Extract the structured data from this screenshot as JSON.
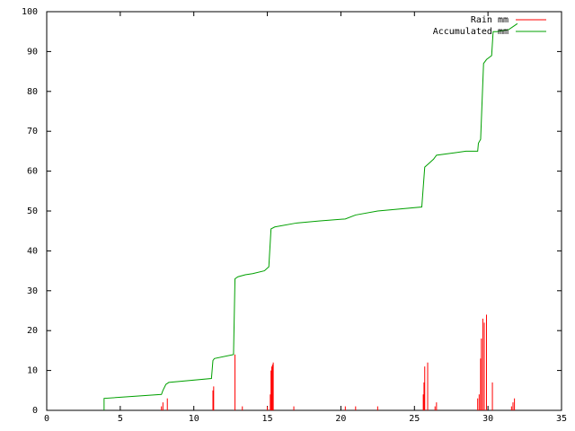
{
  "chart_data": {
    "type": "line",
    "xlim": [
      0,
      35
    ],
    "ylim": [
      0,
      100
    ],
    "x_ticks": [
      0,
      5,
      10,
      15,
      20,
      25,
      30,
      35
    ],
    "y_ticks": [
      0,
      10,
      20,
      30,
      40,
      50,
      60,
      70,
      80,
      90,
      100
    ],
    "grid": false,
    "legend_position": "top-right",
    "series": [
      {
        "name": "Rain mm",
        "color": "#ff0000",
        "style": "impulses",
        "points": [
          [
            7.8,
            1
          ],
          [
            7.9,
            2
          ],
          [
            8.2,
            3
          ],
          [
            11.3,
            5
          ],
          [
            11.35,
            6
          ],
          [
            12.8,
            14
          ],
          [
            13.3,
            1
          ],
          [
            15.0,
            1
          ],
          [
            15.2,
            4
          ],
          [
            15.25,
            10
          ],
          [
            15.3,
            11
          ],
          [
            15.35,
            11.5
          ],
          [
            15.4,
            12
          ],
          [
            16.8,
            1
          ],
          [
            20.3,
            1
          ],
          [
            21.0,
            1
          ],
          [
            22.5,
            1
          ],
          [
            25.6,
            4
          ],
          [
            25.65,
            7
          ],
          [
            25.7,
            11
          ],
          [
            25.9,
            12
          ],
          [
            26.4,
            1
          ],
          [
            26.5,
            2
          ],
          [
            29.3,
            3
          ],
          [
            29.4,
            4
          ],
          [
            29.5,
            13
          ],
          [
            29.55,
            18
          ],
          [
            29.65,
            23
          ],
          [
            29.75,
            22
          ],
          [
            29.9,
            24
          ],
          [
            30.3,
            7
          ],
          [
            31.6,
            1
          ],
          [
            31.7,
            2
          ],
          [
            31.8,
            3
          ]
        ]
      },
      {
        "name": "Accumulated mm",
        "color": "#00a000",
        "style": "line",
        "points": [
          [
            3.9,
            0
          ],
          [
            3.9,
            3
          ],
          [
            7.8,
            4
          ],
          [
            7.9,
            5
          ],
          [
            8.1,
            6.5
          ],
          [
            8.3,
            7
          ],
          [
            11.2,
            8
          ],
          [
            11.3,
            12.5
          ],
          [
            11.4,
            13
          ],
          [
            12.7,
            14
          ],
          [
            12.8,
            33
          ],
          [
            13.0,
            33.5
          ],
          [
            13.5,
            34
          ],
          [
            14.0,
            34.3
          ],
          [
            14.8,
            35
          ],
          [
            15.1,
            36
          ],
          [
            15.25,
            45.5
          ],
          [
            15.5,
            46
          ],
          [
            17.0,
            47
          ],
          [
            18.5,
            47.5
          ],
          [
            20.3,
            48
          ],
          [
            21.0,
            49
          ],
          [
            22.5,
            50
          ],
          [
            25.5,
            51
          ],
          [
            25.7,
            61
          ],
          [
            26.0,
            62
          ],
          [
            26.3,
            63
          ],
          [
            26.5,
            64
          ],
          [
            28.5,
            65
          ],
          [
            29.3,
            65
          ],
          [
            29.35,
            67
          ],
          [
            29.5,
            68
          ],
          [
            29.7,
            87
          ],
          [
            29.9,
            88
          ],
          [
            30.25,
            89
          ],
          [
            30.35,
            95
          ],
          [
            30.6,
            95
          ],
          [
            31.4,
            95.5
          ],
          [
            31.8,
            96.5
          ],
          [
            32.0,
            97
          ]
        ]
      }
    ]
  }
}
